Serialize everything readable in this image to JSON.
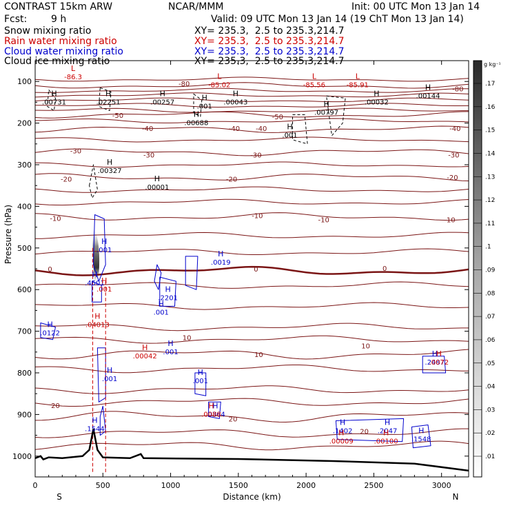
{
  "header": {
    "model": "CONTRAST 15km ARW",
    "fcst_label": "Fcst:",
    "fcst_value": "9 h",
    "center": "NCAR/MMM",
    "init": "Init: 00 UTC Mon 13 Jan 14",
    "valid": "Valid: 09 UTC Mon 13 Jan 14 (19 ChT Mon 13 Jan 14)"
  },
  "fields": [
    {
      "label": "Snow mixing ratio",
      "xy": "XY= 235.3,  2.5 to 235.3,214.7",
      "color": "#000000"
    },
    {
      "label": "Rain water mixing ratio",
      "xy": "XY= 235.3,  2.5 to 235.3,214.7",
      "color": "#cc0000"
    },
    {
      "label": "Cloud water mixing ratio",
      "xy": "XY= 235.3,  2.5 to 235.3,214.7",
      "color": "#0000cc"
    },
    {
      "label": "Cloud ice mixing ratio",
      "xy": "XY= 235.3,  2.5 to 235.3,214.7",
      "color": "#000000"
    }
  ],
  "chart_data": {
    "type": "cross-section",
    "xlabel": "Distance (km)",
    "ylabel": "Pressure (hPa)",
    "xlim": [
      0,
      3200
    ],
    "ylim": [
      1050,
      50
    ],
    "x_ticks": [
      0,
      500,
      1000,
      1500,
      2000,
      2500,
      3000
    ],
    "y_ticks": [
      100,
      200,
      300,
      400,
      500,
      600,
      700,
      800,
      900,
      1000
    ],
    "x_end_labels": {
      "left": "S",
      "right": "N"
    },
    "colorbar": {
      "unit": "g kg⁻¹",
      "ticks": [
        ".01",
        ".02",
        ".03",
        ".04",
        ".05",
        ".06",
        ".07",
        ".08",
        ".09",
        ".1",
        ".11",
        ".12",
        ".13",
        ".14",
        ".15",
        ".16",
        ".17"
      ]
    },
    "temperature_contours": [
      {
        "value": -80,
        "p": 110,
        "labels": [
          {
            "x": 1100,
            "p": 105,
            "text": "-80"
          },
          {
            "x": 3120,
            "p": 117,
            "text": "-80"
          }
        ]
      },
      {
        "value": -50,
        "p": 180,
        "labels": [
          {
            "x": 610,
            "p": 181,
            "text": "-50"
          },
          {
            "x": 1790,
            "p": 184,
            "text": "-50"
          }
        ]
      },
      {
        "value": -40,
        "p": 215,
        "labels": [
          {
            "x": 830,
            "p": 212,
            "text": "-40"
          },
          {
            "x": 1470,
            "p": 212,
            "text": "-40"
          },
          {
            "x": 1670,
            "p": 212,
            "text": "-40"
          },
          {
            "x": 3100,
            "p": 212,
            "text": "-40"
          }
        ]
      },
      {
        "value": -30,
        "p": 270,
        "labels": [
          {
            "x": 300,
            "p": 266,
            "text": "-30"
          },
          {
            "x": 840,
            "p": 276,
            "text": "-30"
          },
          {
            "x": 1630,
            "p": 276,
            "text": "-30"
          },
          {
            "x": 3090,
            "p": 276,
            "text": "-30"
          }
        ]
      },
      {
        "value": -20,
        "p": 330,
        "labels": [
          {
            "x": 230,
            "p": 334,
            "text": "-20"
          },
          {
            "x": 1450,
            "p": 334,
            "text": "-20"
          },
          {
            "x": 3080,
            "p": 330,
            "text": "-20"
          }
        ]
      },
      {
        "value": -10,
        "p": 425,
        "labels": [
          {
            "x": 150,
            "p": 428,
            "text": "-10"
          },
          {
            "x": 1640,
            "p": 422,
            "text": "-10"
          },
          {
            "x": 2130,
            "p": 432,
            "text": "-10"
          },
          {
            "x": 3060,
            "p": 432,
            "text": "-10"
          }
        ]
      },
      {
        "value": 0,
        "p": 555,
        "labels": [
          {
            "x": 110,
            "p": 550,
            "text": "0"
          },
          {
            "x": 1630,
            "p": 550,
            "text": "0"
          },
          {
            "x": 2580,
            "p": 548,
            "text": "0"
          }
        ]
      },
      {
        "value": 10,
        "p": 755,
        "labels": [
          {
            "x": 1120,
            "p": 715,
            "text": "10"
          },
          {
            "x": 1650,
            "p": 755,
            "text": "10"
          },
          {
            "x": 2440,
            "p": 735,
            "text": "10"
          }
        ]
      },
      {
        "value": 20,
        "p": 905,
        "labels": [
          {
            "x": 150,
            "p": 878,
            "text": "20"
          },
          {
            "x": 1460,
            "p": 910,
            "text": "20"
          },
          {
            "x": 2430,
            "p": 940,
            "text": "20"
          }
        ]
      }
    ],
    "extrema": [
      {
        "type": "L",
        "x": 280,
        "p": 85,
        "value": "-86.3",
        "color": "#cc0000"
      },
      {
        "type": "L",
        "x": 1360,
        "p": 104,
        "value": "-85.02",
        "color": "#cc0000"
      },
      {
        "type": "L",
        "x": 2060,
        "p": 104,
        "value": "-85.56",
        "color": "#cc0000"
      },
      {
        "type": "L",
        "x": 2380,
        "p": 104,
        "value": "-85.91",
        "color": "#cc0000"
      },
      {
        "type": "H",
        "x": 140,
        "p": 145,
        "value": ".00731",
        "color": "#000000"
      },
      {
        "type": "H",
        "x": 540,
        "p": 145,
        "value": ".02251",
        "color": "#000000"
      },
      {
        "type": "H",
        "x": 940,
        "p": 145,
        "value": ".00257",
        "color": "#000000"
      },
      {
        "type": "H",
        "x": 1250,
        "p": 155,
        "value": ".001",
        "color": "#000000"
      },
      {
        "type": "H",
        "x": 1480,
        "p": 145,
        "value": ".00043",
        "color": "#000000"
      },
      {
        "type": "H",
        "x": 2520,
        "p": 145,
        "value": ".00032",
        "color": "#000000"
      },
      {
        "type": "H",
        "x": 2900,
        "p": 130,
        "value": ".00144",
        "color": "#000000"
      },
      {
        "type": "H",
        "x": 2150,
        "p": 170,
        "value": ".00797",
        "color": "#000000"
      },
      {
        "type": "H",
        "x": 1190,
        "p": 195,
        "value": ".00688",
        "color": "#000000"
      },
      {
        "type": "H",
        "x": 1880,
        "p": 225,
        "value": ".001",
        "color": "#000000"
      },
      {
        "type": "H",
        "x": 550,
        "p": 310,
        "value": ".00327",
        "color": "#000000"
      },
      {
        "type": "H",
        "x": 900,
        "p": 350,
        "value": ".00001",
        "color": "#000000"
      },
      {
        "type": "H",
        "x": 510,
        "p": 500,
        "value": ".001",
        "color": "#0000cc"
      },
      {
        "type": "H",
        "x": 1370,
        "p": 530,
        "value": ".0019",
        "color": "#0000cc"
      },
      {
        "type": "H",
        "x": 440,
        "p": 580,
        "value": ".4501",
        "color": "#0000cc"
      },
      {
        "type": "H",
        "x": 510,
        "p": 595,
        "value": ".001",
        "color": "#cc0000"
      },
      {
        "type": "H",
        "x": 980,
        "p": 615,
        "value": ".2201",
        "color": "#0000cc"
      },
      {
        "type": "H",
        "x": 930,
        "p": 650,
        "value": ".001",
        "color": "#0000cc"
      },
      {
        "type": "H",
        "x": 460,
        "p": 680,
        "value": ".04013",
        "color": "#cc0000"
      },
      {
        "type": "H",
        "x": 110,
        "p": 700,
        "value": ".0122",
        "color": "#0000cc"
      },
      {
        "type": "H",
        "x": 1000,
        "p": 745,
        "value": ".001",
        "color": "#0000cc"
      },
      {
        "type": "H",
        "x": 810,
        "p": 755,
        "value": ".00042",
        "color": "#cc0000"
      },
      {
        "type": "H",
        "x": 550,
        "p": 810,
        "value": ".001",
        "color": "#0000cc"
      },
      {
        "type": "H",
        "x": 1220,
        "p": 815,
        "value": ".001",
        "color": "#0000cc"
      },
      {
        "type": "H",
        "x": 2950,
        "p": 770,
        "value": ".2487",
        "color": "#0000cc"
      },
      {
        "type": "H",
        "x": 2980,
        "p": 770,
        "value": ".0072",
        "color": "#cc0000"
      },
      {
        "type": "H",
        "x": 1330,
        "p": 895,
        "value": ".0364",
        "color": "#0000cc"
      },
      {
        "type": "H",
        "x": 1300,
        "p": 895,
        "value": ".0088",
        "color": "#cc0000"
      },
      {
        "type": "H",
        "x": 440,
        "p": 930,
        "value": ".1544",
        "color": "#0000cc"
      },
      {
        "type": "H",
        "x": 2270,
        "p": 935,
        "value": ".1402",
        "color": "#0000cc"
      },
      {
        "type": "H",
        "x": 2260,
        "p": 960,
        "value": ".00009",
        "color": "#cc0000"
      },
      {
        "type": "H",
        "x": 2600,
        "p": 935,
        "value": ".2047",
        "color": "#0000cc"
      },
      {
        "type": "H",
        "x": 2590,
        "p": 960,
        "value": ".00100",
        "color": "#cc0000"
      },
      {
        "type": "H",
        "x": 2850,
        "p": 955,
        "value": ".1548",
        "color": "#0000cc"
      }
    ]
  }
}
